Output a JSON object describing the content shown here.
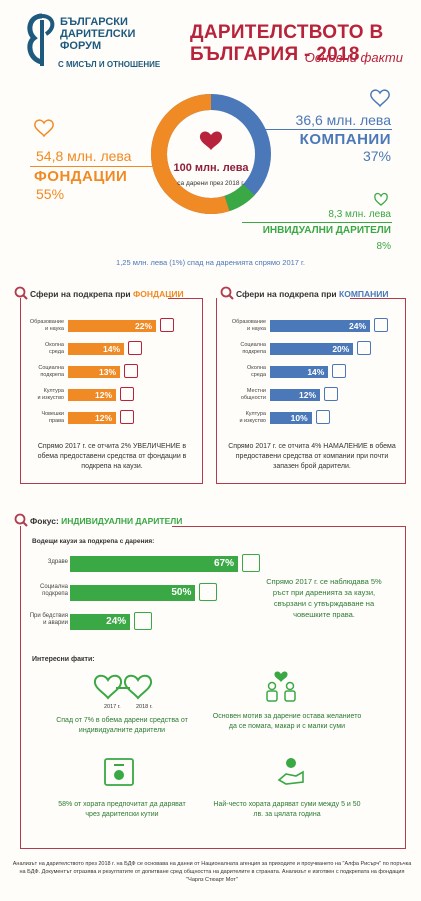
{
  "logo": {
    "line1": "БЪЛГАРСКИ",
    "line2": "ДАРИТЕЛСКИ",
    "line3": "ФОРУМ",
    "tagline": "С МИСЪЛ И ОТНОШЕНИЕ"
  },
  "header": {
    "title": "ДАРИТЕЛСТВОТО В БЪЛГАРИЯ - 2018",
    "subtitle": "Основни факти"
  },
  "donut": {
    "center_value": "100 млн. лева",
    "center_caption": "са дарени през 2018 г.",
    "fondacii": {
      "amount": "54,8 млн. лева",
      "name": "ФОНДАЦИИ",
      "pct": "55%"
    },
    "kompanii": {
      "amount": "36,6 млн. лева",
      "name": "КОМПАНИИ",
      "pct": "37%"
    },
    "individ": {
      "amount": "8,3 млн. лева",
      "name": "ИНВИДУАЛНИ ДАРИТЕЛИ",
      "pct": "8%"
    },
    "colors": {
      "fondacii": "#f08a24",
      "kompanii": "#4a78b8",
      "individ": "#39a845"
    }
  },
  "decline": "1,25 млн. лева (1%) спад на даренията спрямо 2017 г.",
  "chart_data": [
    {
      "type": "bar",
      "title": "Сфери на подкрепа при ФОНДАЦИИ",
      "categories": [
        "Образование и наука",
        "Околна среда",
        "Социална подкрепа",
        "Култура и изкуство",
        "Човешки права"
      ],
      "values": [
        22,
        14,
        13,
        12,
        12
      ],
      "value_labels": [
        "22%",
        "14%",
        "13%",
        "12%",
        "12%"
      ]
    },
    {
      "type": "bar",
      "title": "Сфери на подкрепа при КОМПАНИИ",
      "categories": [
        "Образование и наука",
        "Социална подкрепа",
        "Околна среда",
        "Местни общности",
        "Култура и изкуство"
      ],
      "values": [
        24,
        20,
        14,
        12,
        10
      ],
      "value_labels": [
        "24%",
        "20%",
        "14%",
        "12%",
        "10%"
      ]
    },
    {
      "type": "bar",
      "title": "Водещи каузи за подкрепа с дарения:",
      "categories": [
        "Здраве",
        "Социална подкрепа",
        "При бедствия и аварии"
      ],
      "values": [
        67,
        50,
        24
      ],
      "value_labels": [
        "67%",
        "50%",
        "24%"
      ]
    }
  ],
  "fond": {
    "title_prefix": "Сфери на подкрепа при ",
    "title_hl": "ФОНДАЦИИ",
    "labels": [
      [
        "Образование",
        "и наука"
      ],
      [
        "Околна",
        "среда"
      ],
      [
        "Социална",
        "подкрепа"
      ],
      [
        "Култура",
        "и изкуство"
      ],
      [
        "Човешки",
        "права"
      ]
    ],
    "note": "Спрямо 2017 г. се отчита 2% УВЕЛИЧЕНИЕ в обема предоставени средства от фондации в подкрепа на каузи."
  },
  "komp": {
    "title_prefix": "Сфери на подкрепа при ",
    "title_hl": "КОМПАНИИ",
    "labels": [
      [
        "Образование",
        "и наука"
      ],
      [
        "Социална",
        "подкрепа"
      ],
      [
        "Околна",
        "среда"
      ],
      [
        "Местни",
        "общности"
      ],
      [
        "Култура",
        "и изкуство"
      ]
    ],
    "note": "Спрямо 2017 г. се отчита 4% НАМАЛЕНИЕ в обема предоставени средства от компании при почти запазен брой дарители."
  },
  "focus": {
    "title_prefix": "Фокус: ",
    "title_hl": "ИНДИВИДУАЛНИ ДАРИТЕЛИ",
    "subtitle": "Водещи каузи за подкрепа с дарения:",
    "labels": [
      [
        "Здраве"
      ],
      [
        "Социална",
        "подкрепа"
      ],
      [
        "При бедствия",
        "и аварии"
      ]
    ],
    "side_note": "Спрямо 2017 г. се наблюдава 5% ръст при даренията за каузи, свързани с утвърждаване на човешките права.",
    "facts_title": "Интересни факти:",
    "year1": "2017 г.",
    "year2": "2018 г.",
    "fact1": "Спад от 7% в обема дарени средства от индивидуалните дарители",
    "fact2": "Основен мотив за дарение остава желанието да се помага, макар и с малки суми",
    "fact3": "58% от хората предпочитат да даряват чрез дарителски кутии",
    "fact4": "Най-често хората даряват суми между 5 и 50 лв. за цялата година"
  },
  "footer": "Анализът на дарителството през 2018 г. на БДФ се основава на данни от Националната агенция за приходите и проучването на \"Алфа Рисърч\" по поръчка на БДФ. Документът отразява и резултатите от допитване сред общността на дарителите в страната. Анализът е изготвен с подкрепата на фондация \"Чарлз Стюарт Мот\""
}
